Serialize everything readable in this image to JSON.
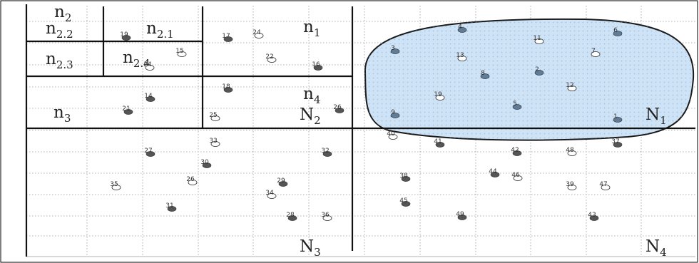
{
  "region_labels": {
    "n1": "n",
    "n1_sub": "1",
    "n2": "n",
    "n2_sub": "2",
    "n21": "n",
    "n21_sub": "2.1",
    "n22": "n",
    "n22_sub": "2.2",
    "n23": "n",
    "n23_sub": "2.3",
    "n24": "n",
    "n24_sub": "2.4",
    "n3": "n",
    "n3_sub": "3",
    "n4": "n",
    "n4_sub": "4",
    "N1": "N",
    "N1_sub": "1",
    "N2": "N",
    "N2_sub": "2",
    "N3": "N",
    "N3_sub": "3",
    "N4": "N",
    "N4_sub": "4"
  },
  "points": [
    {
      "id": "1",
      "filled": true,
      "in_blob": true
    },
    {
      "id": "2",
      "filled": true,
      "in_blob": true
    },
    {
      "id": "3",
      "filled": true,
      "in_blob": true
    },
    {
      "id": "4",
      "filled": true,
      "in_blob": true
    },
    {
      "id": "5",
      "filled": true,
      "in_blob": true
    },
    {
      "id": "6",
      "filled": true,
      "in_blob": true
    },
    {
      "id": "7",
      "filled": false,
      "in_blob": true
    },
    {
      "id": "8",
      "filled": true,
      "in_blob": true
    },
    {
      "id": "9",
      "filled": true,
      "in_blob": true
    },
    {
      "id": "11",
      "filled": false,
      "in_blob": true
    },
    {
      "id": "12",
      "filled": false,
      "in_blob": true
    },
    {
      "id": "13",
      "filled": false,
      "in_blob": true
    },
    {
      "id": "14",
      "filled": true,
      "in_blob": false
    },
    {
      "id": "15",
      "filled": false,
      "in_blob": false
    },
    {
      "id": "16",
      "filled": true,
      "in_blob": false
    },
    {
      "id": "17",
      "filled": true,
      "in_blob": false
    },
    {
      "id": "18",
      "filled": true,
      "in_blob": false
    },
    {
      "id": "19",
      "filled": false,
      "in_blob": true
    },
    {
      "id": "19",
      "filled": true,
      "in_blob": false
    },
    {
      "id": "21",
      "filled": true,
      "in_blob": false
    },
    {
      "id": "22",
      "filled": false,
      "in_blob": false
    },
    {
      "id": "24",
      "filled": false,
      "in_blob": false
    },
    {
      "id": "24",
      "filled": false,
      "in_blob": false
    },
    {
      "id": "25",
      "filled": false,
      "in_blob": false
    },
    {
      "id": "26",
      "filled": true,
      "in_blob": false
    },
    {
      "id": "26",
      "filled": false,
      "in_blob": false
    },
    {
      "id": "27",
      "filled": true,
      "in_blob": false
    },
    {
      "id": "28",
      "filled": true,
      "in_blob": false
    },
    {
      "id": "29",
      "filled": true,
      "in_blob": false
    },
    {
      "id": "30",
      "filled": true,
      "in_blob": false
    },
    {
      "id": "31",
      "filled": true,
      "in_blob": false
    },
    {
      "id": "32",
      "filled": true,
      "in_blob": false
    },
    {
      "id": "33",
      "filled": false,
      "in_blob": false
    },
    {
      "id": "34",
      "filled": false,
      "in_blob": false
    },
    {
      "id": "35",
      "filled": false,
      "in_blob": false
    },
    {
      "id": "36",
      "filled": false,
      "in_blob": false
    },
    {
      "id": "37",
      "filled": true,
      "in_blob": false
    },
    {
      "id": "38",
      "filled": true,
      "in_blob": false
    },
    {
      "id": "39",
      "filled": false,
      "in_blob": false
    },
    {
      "id": "40",
      "filled": false,
      "in_blob": false
    },
    {
      "id": "41",
      "filled": true,
      "in_blob": false
    },
    {
      "id": "42",
      "filled": true,
      "in_blob": false
    },
    {
      "id": "43",
      "filled": true,
      "in_blob": false
    },
    {
      "id": "44",
      "filled": true,
      "in_blob": false
    },
    {
      "id": "45",
      "filled": true,
      "in_blob": false
    },
    {
      "id": "46",
      "filled": false,
      "in_blob": false
    },
    {
      "id": "47",
      "filled": false,
      "in_blob": false
    },
    {
      "id": "48",
      "filled": false,
      "in_blob": false
    },
    {
      "id": "49",
      "filled": true,
      "in_blob": false
    }
  ],
  "colors": {
    "blob_fill": "#cfe3f6",
    "blob_stroke": "#1a1a1a",
    "grid": "#9a9a9a",
    "partition": "#111111",
    "point_filled": "#555555",
    "point_filled_in_blob": "#5f7c99",
    "point_open_stroke": "#444444"
  }
}
